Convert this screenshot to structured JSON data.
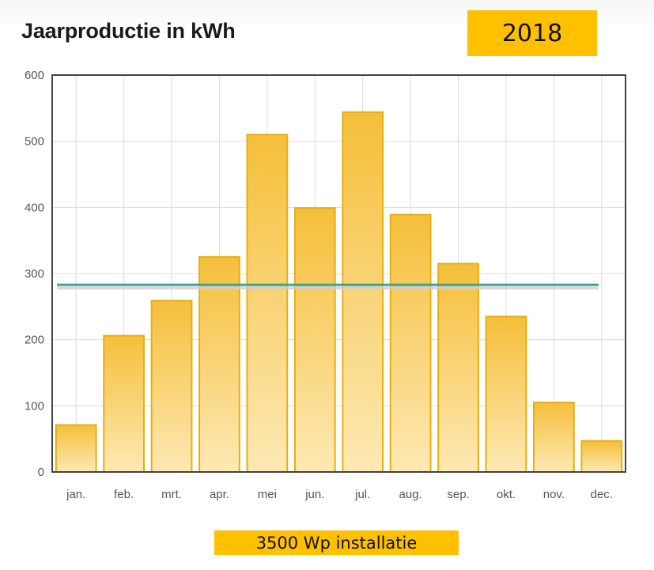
{
  "header": {
    "title": "Jaarproductie in kWh",
    "year": "2018"
  },
  "footer": {
    "installation": "3500 Wp installatie"
  },
  "colors": {
    "bar_top": "#f5bf3a",
    "bar_bottom": "#fde9b4",
    "bar_stroke": "#e8ae10",
    "average_line": "#3aa39a",
    "badge": "#ffc000"
  },
  "chart_data": {
    "type": "bar",
    "title": "Jaarproductie in kWh",
    "xlabel": "",
    "ylabel": "",
    "categories": [
      "jan.",
      "feb.",
      "mrt.",
      "apr.",
      "mei",
      "jun.",
      "jul.",
      "aug.",
      "sep.",
      "okt.",
      "nov.",
      "dec."
    ],
    "values": [
      71,
      206,
      259,
      325,
      510,
      399,
      544,
      389,
      315,
      235,
      105,
      47
    ],
    "average": 283,
    "ylim": [
      0,
      600
    ],
    "yticks": [
      0,
      100,
      200,
      300,
      400,
      500,
      600
    ],
    "grid": true
  }
}
